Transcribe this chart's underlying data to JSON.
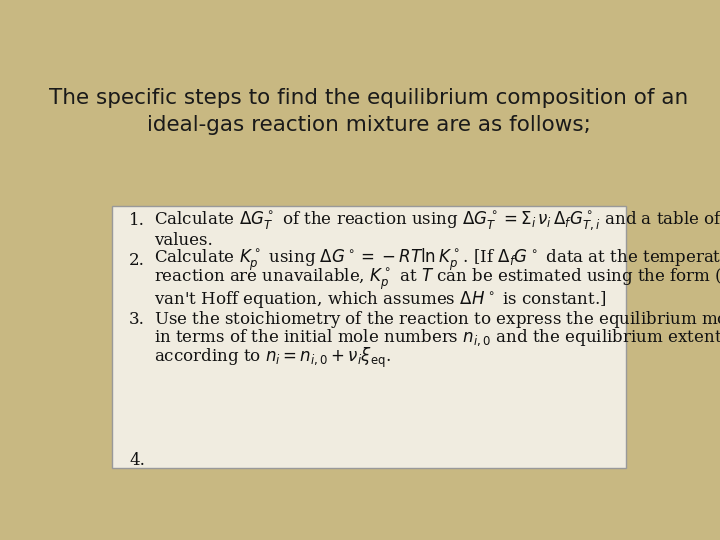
{
  "background_color": "#c8b882",
  "box_color": "#f0ece0",
  "title_line1": "The specific steps to find the equilibrium composition of an",
  "title_line2": "ideal-gas reaction mixture are as follows;",
  "title_color": "#1a1a1a",
  "title_fontsize": 15.5,
  "content_fontsize": 12.0,
  "figsize": [
    7.2,
    5.4
  ],
  "dpi": 100
}
